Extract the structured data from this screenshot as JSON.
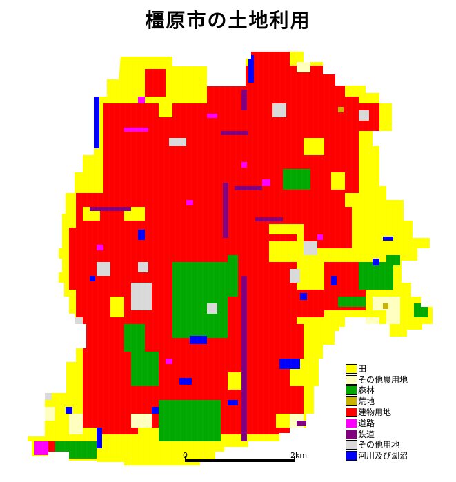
{
  "title": "橿原市の土地利用",
  "legend": [
    {
      "label": "田",
      "color": "#ffff00"
    },
    {
      "label": "その他農用地",
      "color": "#ffffc0"
    },
    {
      "label": "森林",
      "color": "#00a800"
    },
    {
      "label": "荒地",
      "color": "#c8b400"
    },
    {
      "label": "建物用地",
      "color": "#ff0000"
    },
    {
      "label": "道路",
      "color": "#ff00ff"
    },
    {
      "label": "鉄道",
      "color": "#800080"
    },
    {
      "label": "その他用地",
      "color": "#d9d9d9"
    },
    {
      "label": "河川及び湖沼",
      "color": "#0000ff"
    }
  ],
  "scale": {
    "start_label": "0",
    "end_label": "2km"
  }
}
